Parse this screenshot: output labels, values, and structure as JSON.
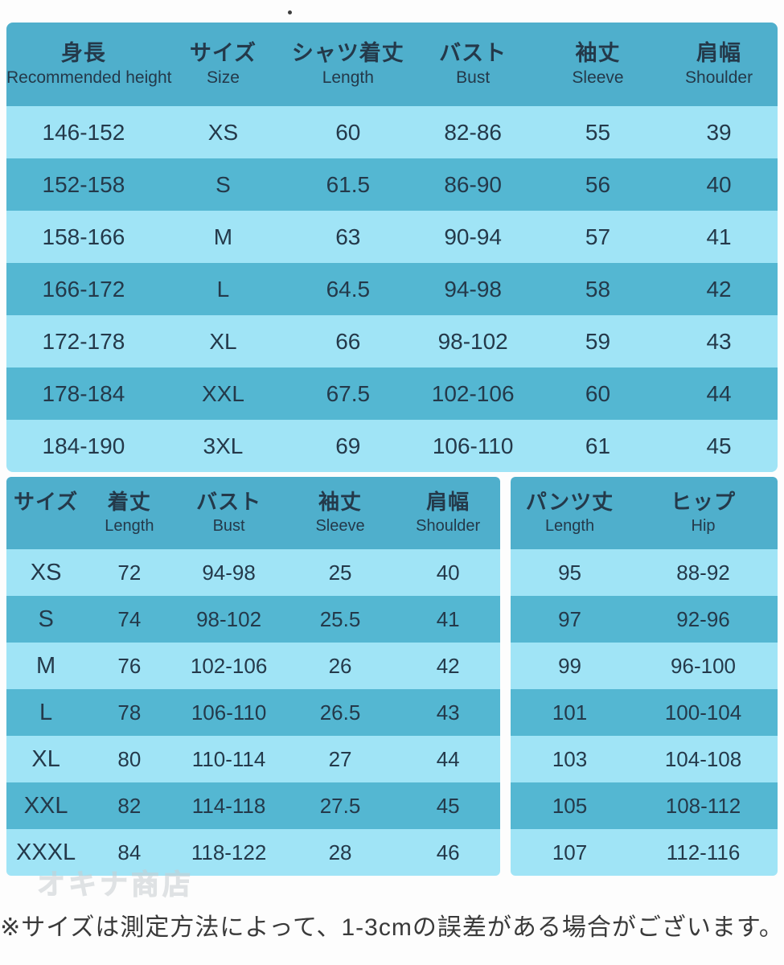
{
  "colors": {
    "page_bg": "#fdfdfd",
    "header_bg": "#4FAFCC",
    "row_dark": "#54B7D2",
    "row_light": "#A0E4F6",
    "cell_text": "#24394A",
    "note_text": "#3a3a3a",
    "watermark": "#c8cdd0"
  },
  "watermark": "オキナ商店",
  "note": "※サイズは測定方法によって、1-3cmの誤差がある場合がございます。",
  "chart_data": [
    {
      "id": "shirt-size-table",
      "type": "table",
      "columns": [
        {
          "jp": "身長",
          "en": "Recommended height"
        },
        {
          "jp": "サイズ",
          "en": "Size"
        },
        {
          "jp": "シャツ着丈",
          "en": "Length"
        },
        {
          "jp": "バスト",
          "en": "Bust"
        },
        {
          "jp": "袖丈",
          "en": "Sleeve"
        },
        {
          "jp": "肩幅",
          "en": "Shoulder"
        }
      ],
      "rows": [
        [
          "146-152",
          "XS",
          "60",
          "82-86",
          "55",
          "39"
        ],
        [
          "152-158",
          "S",
          "61.5",
          "86-90",
          "56",
          "40"
        ],
        [
          "158-166",
          "M",
          "63",
          "90-94",
          "57",
          "41"
        ],
        [
          "166-172",
          "L",
          "64.5",
          "94-98",
          "58",
          "42"
        ],
        [
          "172-178",
          "XL",
          "66",
          "98-102",
          "59",
          "43"
        ],
        [
          "178-184",
          "XXL",
          "67.5",
          "102-106",
          "60",
          "44"
        ],
        [
          "184-190",
          "3XL",
          "69",
          "106-110",
          "61",
          "45"
        ]
      ]
    },
    {
      "id": "set-size-table",
      "type": "table",
      "sections": [
        {
          "columns": [
            {
              "jp": "サイズ",
              "en": ""
            },
            {
              "jp": "着丈",
              "en": "Length"
            },
            {
              "jp": "バスト",
              "en": "Bust"
            },
            {
              "jp": "袖丈",
              "en": "Sleeve"
            },
            {
              "jp": "肩幅",
              "en": "Shoulder"
            }
          ],
          "rows": [
            [
              "XS",
              "72",
              "94-98",
              "25",
              "40"
            ],
            [
              "S",
              "74",
              "98-102",
              "25.5",
              "41"
            ],
            [
              "M",
              "76",
              "102-106",
              "26",
              "42"
            ],
            [
              "L",
              "78",
              "106-110",
              "26.5",
              "43"
            ],
            [
              "XL",
              "80",
              "110-114",
              "27",
              "44"
            ],
            [
              "XXL",
              "82",
              "114-118",
              "27.5",
              "45"
            ],
            [
              "XXXL",
              "84",
              "118-122",
              "28",
              "46"
            ]
          ]
        },
        {
          "columns": [
            {
              "jp": "パンツ丈",
              "en": "Length"
            },
            {
              "jp": "ヒップ",
              "en": "Hip"
            }
          ],
          "rows": [
            [
              "95",
              "88-92"
            ],
            [
              "97",
              "92-96"
            ],
            [
              "99",
              "96-100"
            ],
            [
              "101",
              "100-104"
            ],
            [
              "103",
              "104-108"
            ],
            [
              "105",
              "108-112"
            ],
            [
              "107",
              "112-116"
            ]
          ]
        }
      ]
    }
  ]
}
